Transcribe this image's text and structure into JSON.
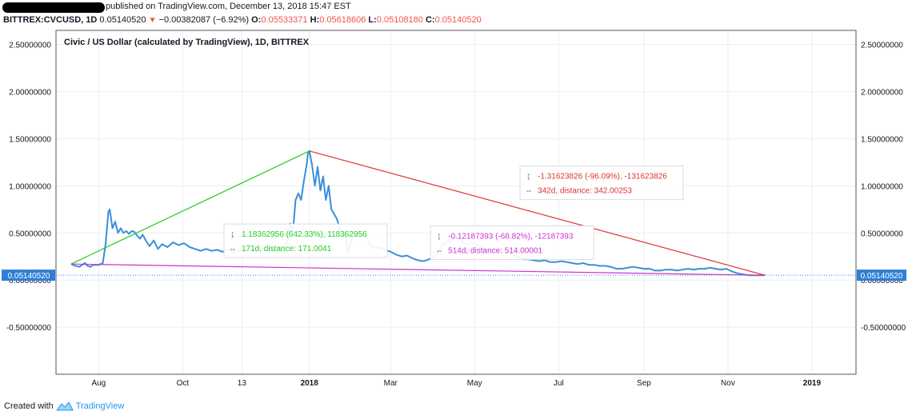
{
  "header": {
    "published": "published on TradingView.com, December 13, 2018 15:47 EST",
    "symbol": "BITTREX:CVCUSD, 1D",
    "last": "0.05140520",
    "change": "−0.00382087 (−6.92%)",
    "o_label": "O:",
    "o_value": "0.05533371",
    "h_label": "H:",
    "h_value": "0.05618606",
    "l_label": "L:",
    "l_value": "0.05108180",
    "c_label": "C:",
    "c_value": "0.05140520"
  },
  "footer": {
    "created": "Created with",
    "brand": "TradingView"
  },
  "colors": {
    "price": "#3a8fd8",
    "grid": "#e8eff3",
    "up": "#22cc22",
    "down": "#dd3333",
    "flat": "#cc33cc",
    "badge": "#2f7fd6"
  },
  "chart_data": {
    "type": "line",
    "title": "Civic / US Dollar (calculated by TradingView), 1D, BITTREX",
    "y_ticks": [
      "2.50000000",
      "2.00000000",
      "1.50000000",
      "1.00000000",
      "0.50000000",
      "0.00000000",
      "-0.50000000"
    ],
    "y_tick_values": [
      2.5,
      2.0,
      1.5,
      1.0,
      0.5,
      0.0,
      -0.5
    ],
    "ylim": [
      -1.0,
      2.65
    ],
    "x_ticks": [
      "Aug",
      "Oct",
      "13",
      "2018",
      "Mar",
      "May",
      "Jul",
      "Sep",
      "Nov",
      "2019"
    ],
    "x_tick_days": [
      0,
      61,
      104,
      153,
      212,
      273,
      334,
      396,
      457,
      518
    ],
    "xlim": [
      -31,
      550
    ],
    "last_price_label": "0.05140520",
    "series": [
      {
        "name": "CVC/USD",
        "points": [
          [
            -20,
            0.17
          ],
          [
            -17,
            0.15
          ],
          [
            -14,
            0.14
          ],
          [
            -12,
            0.16
          ],
          [
            -10,
            0.18
          ],
          [
            -8,
            0.15
          ],
          [
            -6,
            0.14
          ],
          [
            -4,
            0.16
          ],
          [
            -2,
            0.16
          ],
          [
            0,
            0.16
          ],
          [
            3,
            0.18
          ],
          [
            5,
            0.38
          ],
          [
            7,
            0.72
          ],
          [
            8,
            0.75
          ],
          [
            10,
            0.55
          ],
          [
            12,
            0.62
          ],
          [
            14,
            0.5
          ],
          [
            16,
            0.55
          ],
          [
            18,
            0.5
          ],
          [
            20,
            0.52
          ],
          [
            22,
            0.49
          ],
          [
            24,
            0.52
          ],
          [
            26,
            0.51
          ],
          [
            28,
            0.47
          ],
          [
            30,
            0.44
          ],
          [
            32,
            0.48
          ],
          [
            35,
            0.4
          ],
          [
            37,
            0.36
          ],
          [
            40,
            0.42
          ],
          [
            43,
            0.33
          ],
          [
            46,
            0.38
          ],
          [
            50,
            0.35
          ],
          [
            54,
            0.4
          ],
          [
            58,
            0.37
          ],
          [
            62,
            0.39
          ],
          [
            66,
            0.35
          ],
          [
            70,
            0.33
          ],
          [
            74,
            0.31
          ],
          [
            78,
            0.33
          ],
          [
            82,
            0.31
          ],
          [
            86,
            0.32
          ],
          [
            90,
            0.3
          ],
          [
            94,
            0.33
          ],
          [
            98,
            0.3
          ],
          [
            102,
            0.32
          ],
          [
            106,
            0.3
          ],
          [
            110,
            0.33
          ],
          [
            114,
            0.3
          ],
          [
            118,
            0.34
          ],
          [
            122,
            0.31
          ],
          [
            125,
            0.35
          ],
          [
            128,
            0.3
          ],
          [
            131,
            0.35
          ],
          [
            134,
            0.3
          ],
          [
            137,
            0.42
          ],
          [
            139,
            0.6
          ],
          [
            141,
            0.5
          ],
          [
            143,
            0.85
          ],
          [
            145,
            0.92
          ],
          [
            147,
            0.85
          ],
          [
            149,
            1.05
          ],
          [
            151,
            1.22
          ],
          [
            152,
            1.35
          ],
          [
            153,
            1.37
          ],
          [
            155,
            1.22
          ],
          [
            157,
            1.0
          ],
          [
            159,
            1.2
          ],
          [
            161,
            0.95
          ],
          [
            163,
            1.1
          ],
          [
            165,
            0.85
          ],
          [
            167,
            1.0
          ],
          [
            169,
            0.75
          ],
          [
            171,
            0.7
          ],
          [
            173,
            0.65
          ],
          [
            175,
            0.55
          ],
          [
            177,
            0.48
          ],
          [
            179,
            0.52
          ],
          [
            181,
            0.28
          ],
          [
            183,
            0.4
          ],
          [
            185,
            0.46
          ],
          [
            188,
            0.5
          ],
          [
            191,
            0.46
          ],
          [
            194,
            0.48
          ],
          [
            197,
            0.38
          ],
          [
            200,
            0.35
          ],
          [
            204,
            0.34
          ],
          [
            208,
            0.32
          ],
          [
            212,
            0.3
          ],
          [
            216,
            0.27
          ],
          [
            220,
            0.25
          ],
          [
            224,
            0.26
          ],
          [
            228,
            0.23
          ],
          [
            232,
            0.21
          ],
          [
            236,
            0.2
          ],
          [
            240,
            0.22
          ],
          [
            244,
            0.25
          ],
          [
            247,
            0.3
          ],
          [
            250,
            0.38
          ],
          [
            253,
            0.4
          ],
          [
            256,
            0.42
          ],
          [
            259,
            0.46
          ],
          [
            262,
            0.43
          ],
          [
            265,
            0.39
          ],
          [
            268,
            0.37
          ],
          [
            271,
            0.4
          ],
          [
            274,
            0.38
          ],
          [
            277,
            0.35
          ],
          [
            280,
            0.32
          ],
          [
            284,
            0.31
          ],
          [
            288,
            0.33
          ],
          [
            292,
            0.29
          ],
          [
            296,
            0.3
          ],
          [
            300,
            0.28
          ],
          [
            304,
            0.25
          ],
          [
            308,
            0.22
          ],
          [
            312,
            0.22
          ],
          [
            316,
            0.21
          ],
          [
            320,
            0.2
          ],
          [
            324,
            0.21
          ],
          [
            328,
            0.19
          ],
          [
            332,
            0.19
          ],
          [
            336,
            0.2
          ],
          [
            340,
            0.19
          ],
          [
            344,
            0.18
          ],
          [
            348,
            0.17
          ],
          [
            352,
            0.18
          ],
          [
            356,
            0.16
          ],
          [
            360,
            0.16
          ],
          [
            364,
            0.15
          ],
          [
            368,
            0.15
          ],
          [
            372,
            0.14
          ],
          [
            376,
            0.12
          ],
          [
            380,
            0.12
          ],
          [
            384,
            0.13
          ],
          [
            388,
            0.14
          ],
          [
            392,
            0.13
          ],
          [
            396,
            0.12
          ],
          [
            400,
            0.12
          ],
          [
            404,
            0.1
          ],
          [
            408,
            0.1
          ],
          [
            412,
            0.11
          ],
          [
            416,
            0.11
          ],
          [
            420,
            0.1
          ],
          [
            424,
            0.11
          ],
          [
            428,
            0.12
          ],
          [
            432,
            0.11
          ],
          [
            436,
            0.12
          ],
          [
            440,
            0.12
          ],
          [
            444,
            0.13
          ],
          [
            448,
            0.12
          ],
          [
            452,
            0.11
          ],
          [
            456,
            0.12
          ],
          [
            460,
            0.09
          ],
          [
            464,
            0.07
          ],
          [
            468,
            0.06
          ],
          [
            472,
            0.05
          ],
          [
            476,
            0.05
          ],
          [
            480,
            0.05
          ],
          [
            484,
            0.0514
          ]
        ]
      }
    ],
    "drawings": [
      {
        "name": "green-trendline",
        "from": [
          -20,
          0.17
        ],
        "to": [
          153,
          1.37
        ]
      },
      {
        "name": "red-trendline",
        "from": [
          153,
          1.37
        ],
        "to": [
          484,
          0.05
        ]
      },
      {
        "name": "magenta-trendline",
        "from": [
          -20,
          0.17
        ],
        "to": [
          484,
          0.05
        ]
      }
    ],
    "annotations": [
      {
        "name": "green-measure",
        "color": "#22cc22",
        "price": "1.18362956 (642.33%), 118362956",
        "range": "171d, distance: 171.0041",
        "day": 91,
        "y": 0.595
      },
      {
        "name": "magenta-measure",
        "color": "#cc33cc",
        "price": "-0.12187393 (-68.82%), -12187393",
        "range": "514d, distance: 514.00001",
        "day": 241,
        "y": 0.575
      },
      {
        "name": "red-measure",
        "color": "#dd3333",
        "price": "-1.31623826 (-96.09%), -131623826",
        "range": "342d, distance: 342.00253",
        "day": 306,
        "y": 1.21
      }
    ]
  }
}
